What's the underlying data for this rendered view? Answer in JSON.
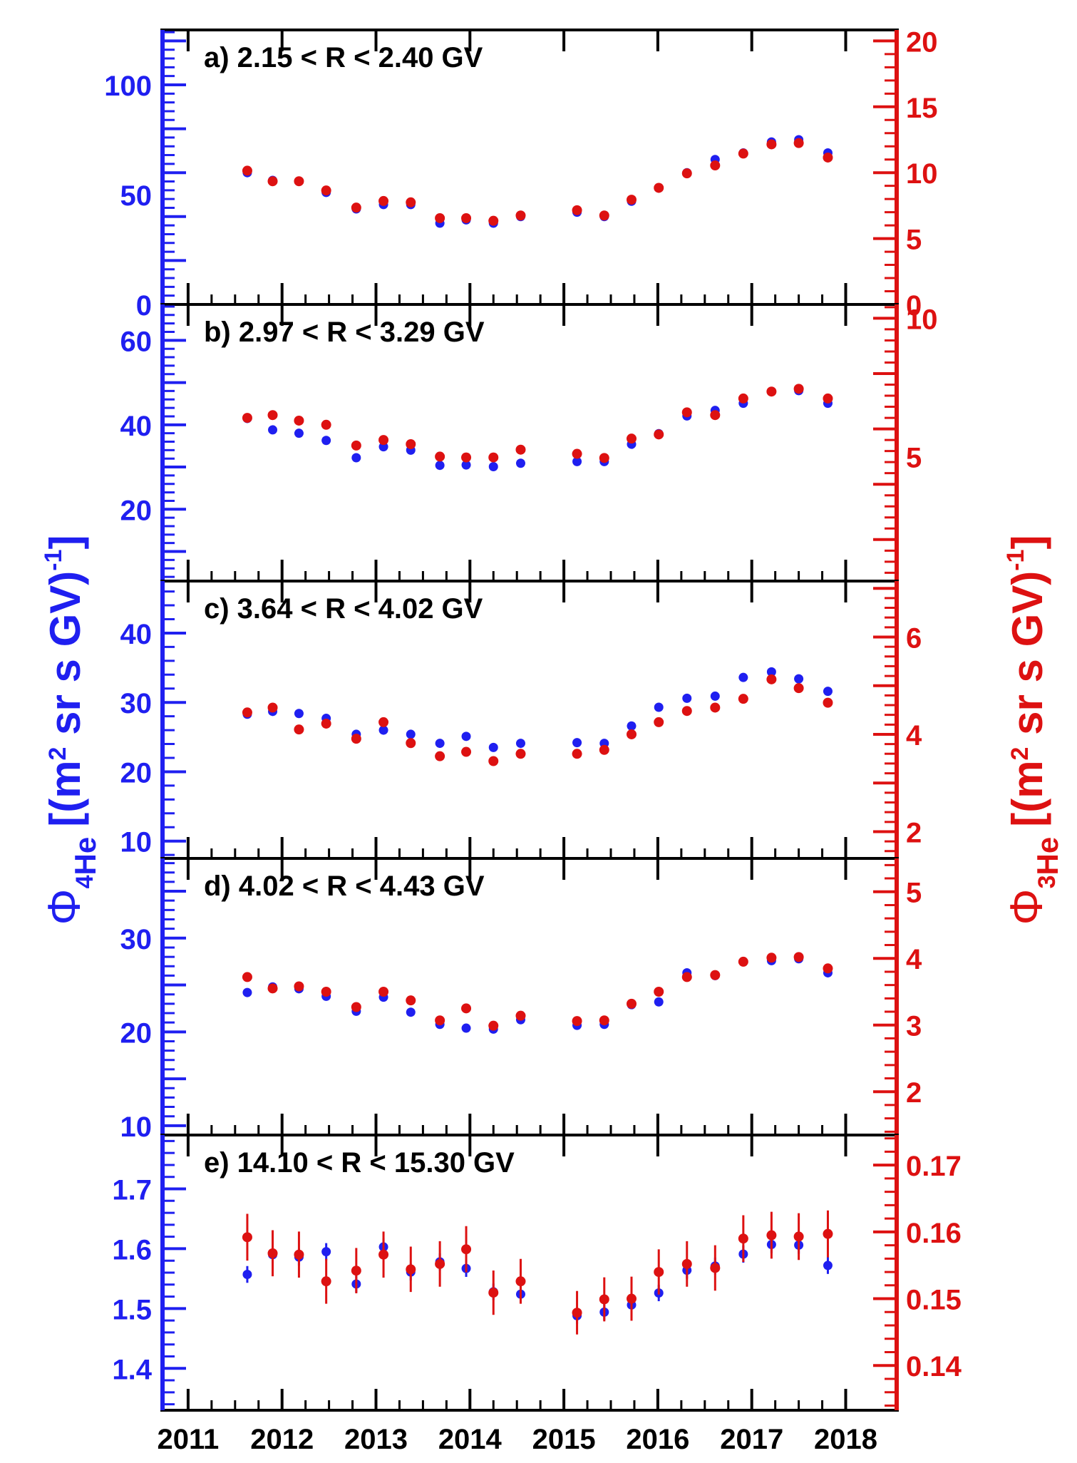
{
  "colors": {
    "he4": "#1f1ff0",
    "he3": "#dd1111",
    "frame": "#000000"
  },
  "axes": {
    "x_ticks": [
      "2011",
      "2012",
      "2013",
      "2014",
      "2015",
      "2016",
      "2017",
      "2018"
    ],
    "y_left_label": {
      "symbol": "Φ",
      "sub": "4",
      "sub2": "He",
      "units_open": "[(m",
      "units_pow": "2",
      "units_mid": " sr s GV)",
      "units_exp": "-1",
      "units_close": "]"
    },
    "y_right_label": {
      "symbol": "Φ",
      "sub": "3",
      "sub2": "He",
      "units_open": "[(m",
      "units_pow": "2",
      "units_mid": " sr s GV)",
      "units_exp": "-1",
      "units_close": "]"
    }
  },
  "chart_data": [
    {
      "type": "scatter",
      "title": "a)  2.15 < R <  2.40 GV",
      "x": [
        2011.63,
        2011.9,
        2012.18,
        2012.47,
        2012.79,
        2013.08,
        2013.37,
        2013.68,
        2013.96,
        2014.25,
        2014.54,
        2015.14,
        2015.43,
        2015.72,
        2016.01,
        2016.31,
        2016.61,
        2016.91,
        2017.21,
        2017.5,
        2017.81
      ],
      "ylim_left": [
        0,
        125
      ],
      "ylim_right": [
        0,
        20.833
      ],
      "yticks_left": [
        "0",
        "50",
        "100"
      ],
      "yticks_right": [
        "0",
        "5",
        "10",
        "15",
        "20"
      ],
      "series": [
        {
          "values": [
            60,
            56.5,
            56,
            51,
            43.5,
            45.5,
            45.5,
            37,
            38.5,
            37,
            40,
            42,
            40,
            47,
            53,
            60,
            66,
            69,
            74,
            75,
            69
          ]
        },
        {
          "values": [
            10.15,
            9.35,
            9.35,
            8.65,
            7.35,
            7.85,
            7.75,
            6.55,
            6.55,
            6.35,
            6.75,
            7.15,
            6.75,
            7.95,
            8.85,
            9.95,
            10.55,
            11.45,
            12.15,
            12.25,
            11.15
          ]
        }
      ]
    },
    {
      "type": "scatter",
      "title": "b)  2.97 < R <  3.29 GV",
      "x": [
        2011.63,
        2011.9,
        2012.18,
        2012.47,
        2012.79,
        2013.08,
        2013.37,
        2013.68,
        2013.96,
        2014.25,
        2014.54,
        2015.14,
        2015.43,
        2015.72,
        2016.01,
        2016.31,
        2016.61,
        2016.91,
        2017.21,
        2017.5,
        2017.81
      ],
      "ylim_left": [
        3,
        68.5
      ],
      "ylim_right": [
        0.5,
        10.5
      ],
      "yticks_left": [
        "20",
        "40",
        "60"
      ],
      "yticks_right": [
        "5",
        "10"
      ],
      "series": [
        {
          "values": [
            41.5,
            38.8,
            38,
            36.3,
            32.2,
            34.8,
            34,
            30.4,
            30.5,
            30.1,
            30.9,
            31.3,
            31.3,
            35.4,
            37.9,
            42.1,
            43.4,
            45.1,
            47.9,
            48.1,
            45.1
          ]
        },
        {
          "values": [
            6.4,
            6.5,
            6.3,
            6.15,
            5.4,
            5.6,
            5.45,
            5,
            4.97,
            4.97,
            5.25,
            5.1,
            4.95,
            5.65,
            5.8,
            6.6,
            6.5,
            7.1,
            7.35,
            7.45,
            7.1
          ]
        }
      ]
    },
    {
      "type": "scatter",
      "title": "c)  3.64 < R <  4.02 GV",
      "x": [
        2011.63,
        2011.9,
        2012.18,
        2012.47,
        2012.79,
        2013.08,
        2013.37,
        2013.68,
        2013.96,
        2014.25,
        2014.54,
        2015.14,
        2015.43,
        2015.72,
        2016.01,
        2016.31,
        2016.61,
        2016.91,
        2017.21,
        2017.5,
        2017.81
      ],
      "ylim_left": [
        7.5,
        47.5
      ],
      "ylim_right": [
        1.45,
        7.15
      ],
      "yticks_left": [
        "10",
        "20",
        "30",
        "40"
      ],
      "yticks_right": [
        "2",
        "4",
        "6"
      ],
      "series": [
        {
          "values": [
            28.3,
            28.7,
            28.4,
            27.7,
            25.4,
            26,
            25.4,
            24.1,
            25.1,
            23.5,
            24.1,
            24.2,
            24.1,
            26.6,
            29.3,
            30.6,
            30.9,
            33.6,
            34.4,
            33.4,
            31.6
          ]
        },
        {
          "values": [
            4.45,
            4.55,
            4.1,
            4.22,
            3.91,
            4.25,
            3.82,
            3.55,
            3.64,
            3.45,
            3.6,
            3.6,
            3.68,
            4,
            4.25,
            4.48,
            4.55,
            4.73,
            5.13,
            4.95,
            4.65
          ]
        }
      ]
    },
    {
      "type": "scatter",
      "title": "d)  4.02 < R <  4.43 GV",
      "x": [
        2011.63,
        2011.9,
        2012.18,
        2012.47,
        2012.79,
        2013.08,
        2013.37,
        2013.68,
        2013.96,
        2014.25,
        2014.54,
        2015.14,
        2015.43,
        2015.72,
        2016.01,
        2016.31,
        2016.61,
        2016.91,
        2017.21,
        2017.5,
        2017.81
      ],
      "ylim_left": [
        9,
        38.5
      ],
      "ylim_right": [
        1.35,
        5.5
      ],
      "yticks_left": [
        "10",
        "20",
        "30"
      ],
      "yticks_right": [
        "2",
        "3",
        "4",
        "5"
      ],
      "series": [
        {
          "values": [
            24.2,
            24.8,
            24.6,
            23.8,
            22.2,
            23.7,
            22.1,
            20.8,
            20.4,
            20.3,
            21.3,
            20.7,
            20.8,
            22.9,
            23.2,
            26.3,
            26,
            27.5,
            27.6,
            27.8,
            26.3
          ]
        },
        {
          "values": [
            3.72,
            3.55,
            3.58,
            3.5,
            3.27,
            3.5,
            3.37,
            3.07,
            3.25,
            2.99,
            3.14,
            3.06,
            3.07,
            3.32,
            3.5,
            3.72,
            3.75,
            3.95,
            4.01,
            4.02,
            3.85
          ]
        }
      ]
    },
    {
      "type": "scatter",
      "title": "e) 14.10 < R < 15.30 GV",
      "x": [
        2011.63,
        2011.9,
        2012.18,
        2012.47,
        2012.79,
        2013.08,
        2013.37,
        2013.68,
        2013.96,
        2014.25,
        2014.54,
        2015.14,
        2015.43,
        2015.72,
        2016.01,
        2016.31,
        2016.61,
        2016.91,
        2017.21,
        2017.5,
        2017.81
      ],
      "ylim_left": [
        1.33,
        1.79
      ],
      "ylim_right": [
        0.1333,
        0.1745
      ],
      "yticks_left": [
        "1.4",
        "1.5",
        "1.6",
        "1.7"
      ],
      "yticks_right": [
        "0.14",
        "0.15",
        "0.16",
        "0.17"
      ],
      "series": [
        {
          "values": [
            1.557,
            1.59,
            1.586,
            1.595,
            1.541,
            1.603,
            1.561,
            1.578,
            1.567,
            1.528,
            1.524,
            1.488,
            1.494,
            1.506,
            1.526,
            1.564,
            1.571,
            1.591,
            1.607,
            1.606,
            1.572
          ]
        },
        {
          "values": [
            0.1592,
            0.1568,
            0.1566,
            0.1526,
            0.1542,
            0.1566,
            0.1544,
            0.1552,
            0.1574,
            0.1509,
            0.1526,
            0.1479,
            0.1499,
            0.15,
            0.154,
            0.1552,
            0.1546,
            0.159,
            0.1595,
            0.1593,
            0.1597
          ]
        }
      ]
    }
  ]
}
